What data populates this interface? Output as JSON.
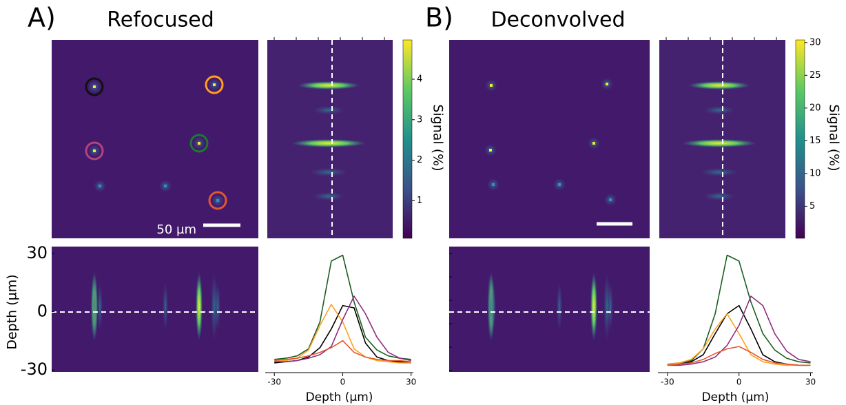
{
  "chart_data": [
    {
      "type": "line",
      "panel_label": "A)",
      "title": "Refocused",
      "scale_bar_label": "50 µm",
      "colorbar": {
        "label": "Signal (%)",
        "lim": [
          0.07,
          4.97
        ],
        "ticks": [
          1,
          2,
          3,
          4
        ]
      },
      "depth_axis": {
        "label": "Depth (µm)",
        "ylim": [
          -31,
          33.5
        ],
        "yticks": [
          30,
          0,
          -30
        ]
      },
      "xlabel": "Depth (µm)",
      "xlim": [
        -34,
        31
      ],
      "xticks": [
        -30,
        0,
        30
      ],
      "ylim": [
        0,
        1
      ],
      "x": [
        -30,
        -25,
        -20,
        -15,
        -10,
        -5,
        0,
        5,
        10,
        15,
        20,
        25,
        30
      ],
      "series": [
        {
          "color": "#1b5e20",
          "values": [
            0.06,
            0.07,
            0.09,
            0.15,
            0.38,
            0.9,
            0.95,
            0.55,
            0.25,
            0.14,
            0.09,
            0.07,
            0.06
          ]
        },
        {
          "color": "#000000",
          "values": [
            0.03,
            0.04,
            0.05,
            0.08,
            0.16,
            0.32,
            0.52,
            0.5,
            0.2,
            0.08,
            0.05,
            0.04,
            0.03
          ]
        },
        {
          "color": "#ff9f1c",
          "values": [
            0.04,
            0.05,
            0.07,
            0.14,
            0.35,
            0.53,
            0.38,
            0.15,
            0.08,
            0.05,
            0.04,
            0.03,
            0.03
          ]
        },
        {
          "color": "#8e2c7e",
          "values": [
            0.04,
            0.04,
            0.05,
            0.07,
            0.1,
            0.17,
            0.4,
            0.6,
            0.45,
            0.25,
            0.12,
            0.07,
            0.05
          ]
        },
        {
          "color": "#e4572e",
          "values": [
            0.05,
            0.06,
            0.07,
            0.09,
            0.12,
            0.16,
            0.22,
            0.12,
            0.08,
            0.06,
            0.05,
            0.05,
            0.04
          ]
        }
      ]
    },
    {
      "type": "line",
      "panel_label": "B)",
      "title": "Deconvolved",
      "colorbar": {
        "label": "Signal (%)",
        "lim": [
          0.1,
          30.4
        ],
        "ticks": [
          5,
          10,
          15,
          20,
          25,
          30
        ]
      },
      "xlabel": "Depth (µm)",
      "xlim": [
        -34,
        31
      ],
      "xticks": [
        -30,
        0,
        30
      ],
      "ylim": [
        0,
        1
      ],
      "x": [
        -30,
        -25,
        -20,
        -15,
        -10,
        -5,
        0,
        5,
        10,
        15,
        20,
        25,
        30
      ],
      "series": [
        {
          "color": "#1b5e20",
          "values": [
            0.02,
            0.03,
            0.05,
            0.15,
            0.45,
            0.95,
            0.9,
            0.55,
            0.28,
            0.14,
            0.07,
            0.04,
            0.03
          ]
        },
        {
          "color": "#000000",
          "values": [
            0.01,
            0.02,
            0.04,
            0.1,
            0.28,
            0.45,
            0.52,
            0.32,
            0.1,
            0.04,
            0.02,
            0.01,
            0.01
          ]
        },
        {
          "color": "#ff9f1c",
          "values": [
            0.02,
            0.03,
            0.06,
            0.15,
            0.32,
            0.45,
            0.28,
            0.1,
            0.04,
            0.02,
            0.01,
            0.01,
            0.01
          ]
        },
        {
          "color": "#8e2c7e",
          "values": [
            0.01,
            0.01,
            0.02,
            0.04,
            0.08,
            0.18,
            0.35,
            0.6,
            0.52,
            0.28,
            0.13,
            0.06,
            0.04
          ]
        },
        {
          "color": "#e4572e",
          "values": [
            0.01,
            0.02,
            0.03,
            0.06,
            0.11,
            0.15,
            0.17,
            0.12,
            0.06,
            0.03,
            0.02,
            0.01,
            0.01
          ]
        }
      ]
    }
  ]
}
